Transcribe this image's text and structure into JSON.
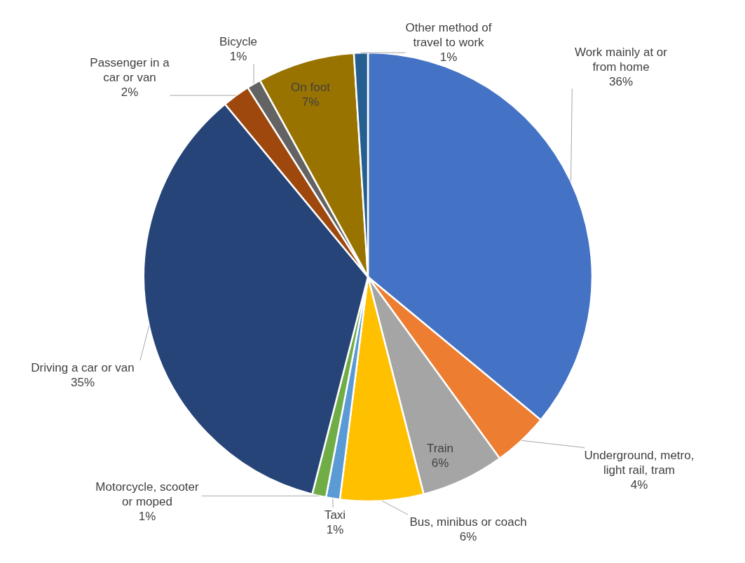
{
  "chart_data": {
    "type": "pie",
    "categories": [
      "Work mainly at or from home",
      "Underground, metro, light rail, tram",
      "Train",
      "Bus, minibus or coach",
      "Taxi",
      "Motorcycle, scooter or moped",
      "Driving a car or van",
      "Passenger in a car or van",
      "Bicycle",
      "On foot",
      "Other method of travel to work"
    ],
    "values": [
      36,
      4,
      6,
      6,
      1,
      1,
      35,
      2,
      1,
      7,
      1
    ],
    "colors": [
      "#4472c4",
      "#ed7d31",
      "#a5a5a5",
      "#ffc000",
      "#5b9bd5",
      "#70ad47",
      "#264478",
      "#9e480e",
      "#636363",
      "#997300",
      "#255e91"
    ],
    "value_labels": [
      "36%",
      "4%",
      "6%",
      "6%",
      "1%",
      "1%",
      "35%",
      "2%",
      "1%",
      "7%",
      "1%"
    ]
  }
}
